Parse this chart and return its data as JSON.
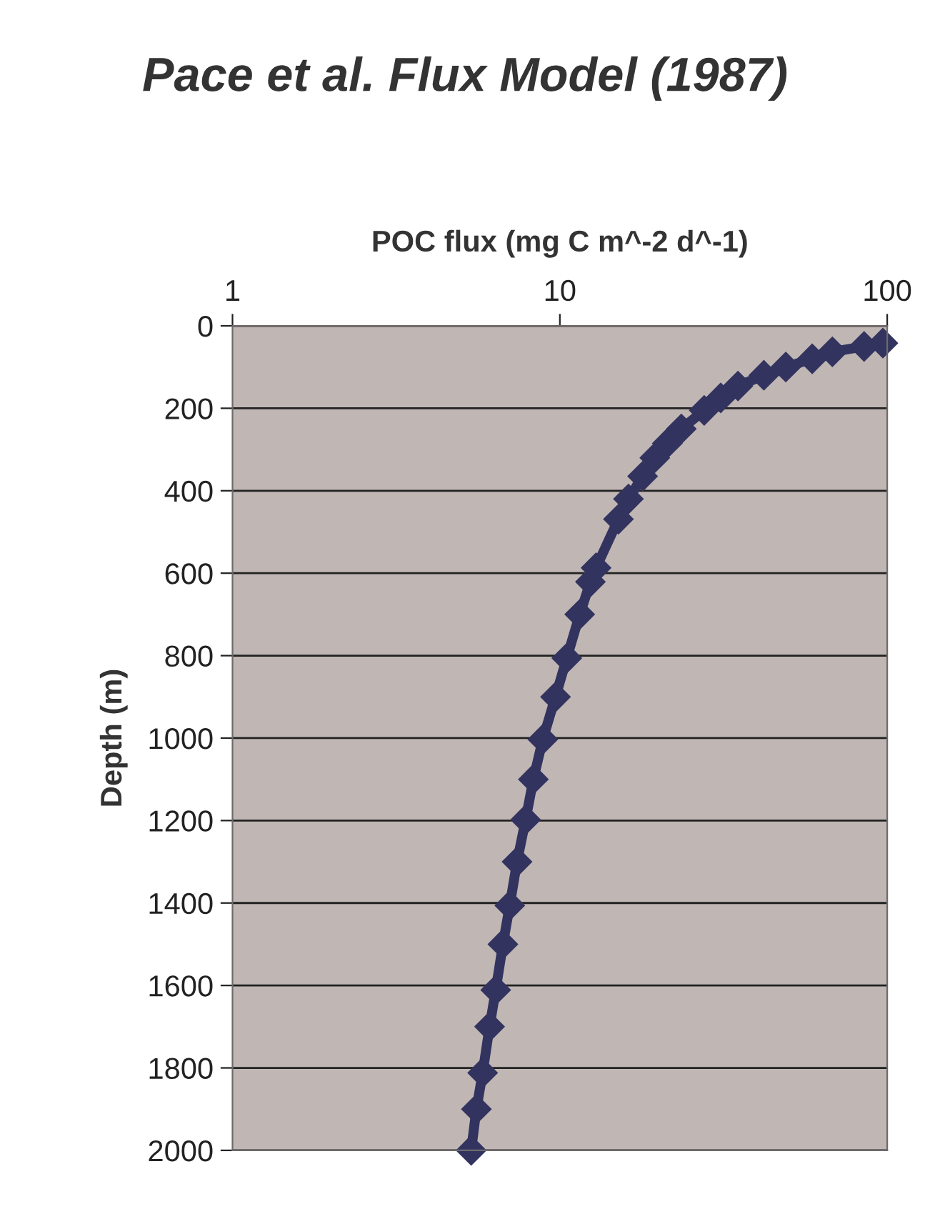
{
  "chart_data": {
    "type": "line",
    "title": "Pace et al. Flux Model (1987)",
    "xlabel": "POC flux (mg C m^-2 d^-1)",
    "ylabel": "Depth (m)",
    "x": [
      97,
      85,
      68,
      59,
      49,
      42,
      35,
      31,
      27.6,
      23.5,
      21.3,
      19.5,
      17.9,
      16.2,
      15.1,
      12.9,
      12.4,
      11.5,
      10.5,
      9.7,
      8.87,
      8.3,
      7.86,
      7.4,
      7.03,
      6.7,
      6.37,
      6.1,
      5.81,
      5.56,
      5.36
    ],
    "series": [
      {
        "color": "#33335f",
        "values": [
          42,
          50,
          63,
          80,
          100,
          120,
          146,
          175,
          205,
          250,
          285,
          320,
          365,
          420,
          469,
          587,
          621,
          700,
          806,
          900,
          1003,
          1100,
          1198,
          1300,
          1406,
          1500,
          1611,
          1700,
          1812,
          1900,
          2000
        ]
      }
    ],
    "log": "x",
    "xlim": [
      1,
      100
    ],
    "xticks": [
      1,
      10,
      100
    ],
    "ylim": [
      2000,
      0
    ],
    "yticks": [
      0,
      200,
      400,
      600,
      800,
      1000,
      1200,
      1400,
      1600,
      1800,
      2000
    ],
    "grid": "y",
    "marker": "diamond",
    "line_style": "solid"
  }
}
